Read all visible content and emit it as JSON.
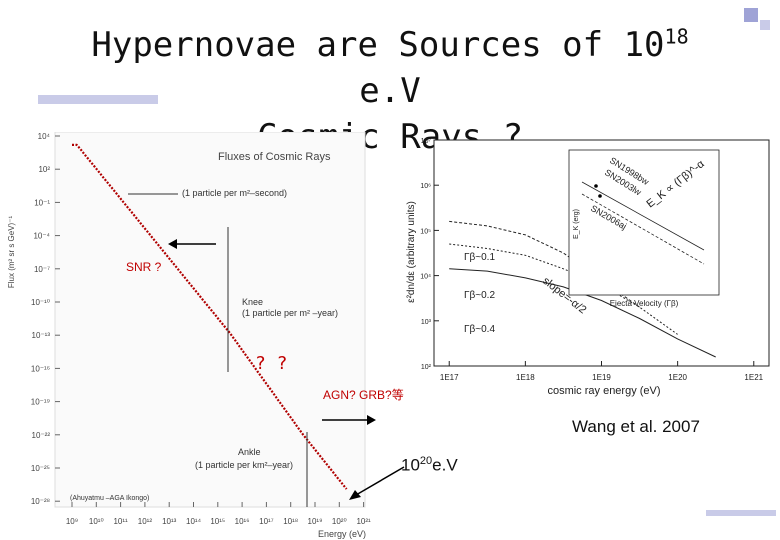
{
  "slide": {
    "title_line1_pre": "Hypernovae are Sources of 10",
    "title_sup": "18",
    "title_line1_post": " e.V",
    "title_line2": "Cosmic Rays ?",
    "citation": "Wang et al. 2007",
    "energy_label_base": "10",
    "energy_label_sup": "20",
    "energy_label_unit": "e.V",
    "snr_label": "SNR ?",
    "unknown_label": "? ?",
    "agn_label": "AGN? GRB?等"
  },
  "left_chart": {
    "title": "Fluxes of Cosmic Rays",
    "ylabel": "Flux (m² sr s GeV)⁻¹",
    "xlabel": "Energy (eV)",
    "y_ticks": [
      "10⁴",
      "10²",
      "10⁻¹",
      "10⁻⁴",
      "10⁻⁷",
      "10⁻¹⁰",
      "10⁻¹³",
      "10⁻¹⁶",
      "10⁻¹⁹",
      "10⁻²²",
      "10⁻²⁵",
      "10⁻²⁸"
    ],
    "x_ticks": [
      "10⁹",
      "10¹⁰",
      "10¹¹",
      "10¹²",
      "10¹³",
      "10¹⁴",
      "10¹⁵",
      "10¹⁶",
      "10¹⁷",
      "10¹⁸",
      "10¹⁹",
      "10²⁰",
      "10²¹"
    ],
    "annotation_1": "(1 particle per m²–second)",
    "annotation_knee": "Knee",
    "annotation_knee_2": "(1 particle per m² –year)",
    "annotation_ankle": "Ankle",
    "annotation_ankle_2": "(1 particle per km²–year)",
    "legend_note": "(Ahuyatmu –AGA Ikongo)"
  },
  "chart_data": {
    "type": "line",
    "title": "Fluxes of Cosmic Rays",
    "xlabel": "cosmic ray energy (eV)",
    "ylabel": "ε²dn/dε (arbitrary units)",
    "x_ticks": [
      "1E17",
      "1E18",
      "1E19",
      "1E20",
      "1E21"
    ],
    "y_ticks": [
      "10⁷",
      "10⁶",
      "10⁵",
      "10⁴",
      "10³",
      "10²"
    ],
    "series": [
      {
        "name": "Γβ~0.1",
        "points": [
          [
            17.0,
            5.2
          ],
          [
            17.5,
            5.1
          ],
          [
            18.0,
            4.9
          ],
          [
            18.5,
            4.5
          ],
          [
            19.0,
            3.9
          ],
          [
            19.5,
            3.3
          ]
        ]
      },
      {
        "name": "Γβ~0.2",
        "points": [
          [
            17.0,
            4.7
          ],
          [
            17.5,
            4.6
          ],
          [
            18.0,
            4.45
          ],
          [
            18.5,
            4.15
          ],
          [
            19.0,
            3.8
          ],
          [
            19.5,
            3.3
          ],
          [
            20.0,
            2.7
          ]
        ]
      },
      {
        "name": "Γβ~0.4",
        "points": [
          [
            17.0,
            4.15
          ],
          [
            17.5,
            4.1
          ],
          [
            18.0,
            3.95
          ],
          [
            18.5,
            3.75
          ],
          [
            19.0,
            3.45
          ],
          [
            19.5,
            3.05
          ],
          [
            20.0,
            2.6
          ],
          [
            20.5,
            2.2
          ]
        ]
      }
    ],
    "annotation": "slope=-α/2",
    "inset": {
      "xlabel": "Ejecta Velocity (Γβ)",
      "ylabel": "E_K (erg)",
      "points": [
        "SN1998bw",
        "SN2003lw",
        "SN2006aj"
      ],
      "relation": "E_K ∝ (Γβ)^-α"
    }
  }
}
